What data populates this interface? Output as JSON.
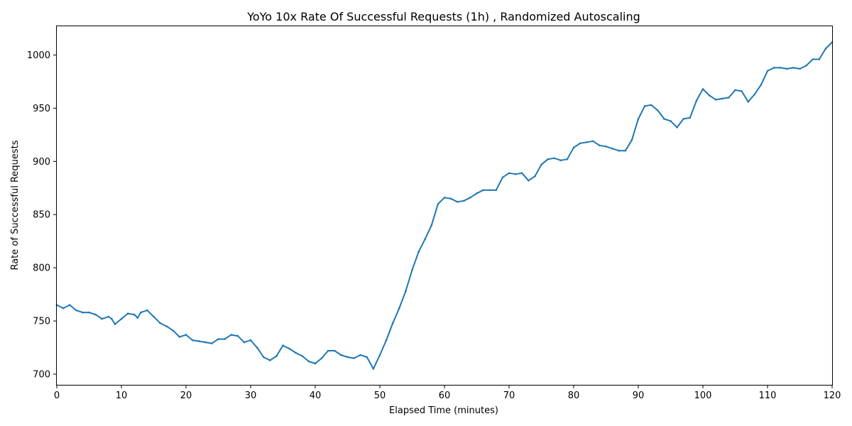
{
  "chart_data": {
    "type": "line",
    "title": "YoYo 10x Rate Of Successful Requests (1h) , Randomized Autoscaling",
    "xlabel": "Elapsed Time (minutes)",
    "ylabel": "Rate of Successful Requests",
    "xlim": [
      0,
      120
    ],
    "ylim": [
      690,
      1027
    ],
    "xticks": [
      0,
      10,
      20,
      30,
      40,
      50,
      60,
      70,
      80,
      90,
      100,
      110,
      120
    ],
    "yticks": [
      700,
      750,
      800,
      850,
      900,
      950,
      1000
    ],
    "grid": false,
    "legend": "none",
    "series": [
      {
        "color": "#1f77b4",
        "points": [
          [
            0,
            765
          ],
          [
            1,
            762
          ],
          [
            2,
            765
          ],
          [
            3,
            760
          ],
          [
            4,
            758
          ],
          [
            5,
            758
          ],
          [
            6,
            756
          ],
          [
            7,
            752
          ],
          [
            8,
            754
          ],
          [
            8.5,
            752
          ],
          [
            9,
            747
          ],
          [
            10,
            752
          ],
          [
            11,
            757
          ],
          [
            12,
            756
          ],
          [
            12.5,
            753
          ],
          [
            13,
            758
          ],
          [
            14,
            760
          ],
          [
            15,
            754
          ],
          [
            16,
            748
          ],
          [
            17,
            745
          ],
          [
            18,
            741
          ],
          [
            19,
            735
          ],
          [
            20,
            737
          ],
          [
            21,
            732
          ],
          [
            22,
            731
          ],
          [
            23,
            730
          ],
          [
            24,
            729
          ],
          [
            25,
            733
          ],
          [
            26,
            733
          ],
          [
            27,
            737
          ],
          [
            28,
            736
          ],
          [
            29,
            730
          ],
          [
            30,
            732
          ],
          [
            31,
            725
          ],
          [
            32,
            716
          ],
          [
            33,
            713
          ],
          [
            34,
            717
          ],
          [
            35,
            727
          ],
          [
            36,
            724
          ],
          [
            37,
            720
          ],
          [
            38,
            717
          ],
          [
            39,
            712
          ],
          [
            40,
            710
          ],
          [
            41,
            715
          ],
          [
            42,
            722
          ],
          [
            43,
            722
          ],
          [
            44,
            718
          ],
          [
            45,
            716
          ],
          [
            46,
            715
          ],
          [
            47,
            718
          ],
          [
            48,
            716
          ],
          [
            49,
            705
          ],
          [
            50,
            718
          ],
          [
            51,
            732
          ],
          [
            52,
            748
          ],
          [
            53,
            762
          ],
          [
            54,
            778
          ],
          [
            55,
            798
          ],
          [
            56,
            815
          ],
          [
            57,
            827
          ],
          [
            58,
            840
          ],
          [
            59,
            860
          ],
          [
            60,
            866
          ],
          [
            61,
            865
          ],
          [
            62,
            862
          ],
          [
            63,
            863
          ],
          [
            64,
            866
          ],
          [
            65,
            870
          ],
          [
            66,
            873
          ],
          [
            67,
            873
          ],
          [
            68,
            873
          ],
          [
            69,
            885
          ],
          [
            70,
            889
          ],
          [
            71,
            888
          ],
          [
            72,
            889
          ],
          [
            73,
            882
          ],
          [
            74,
            886
          ],
          [
            75,
            897
          ],
          [
            76,
            902
          ],
          [
            77,
            903
          ],
          [
            78,
            901
          ],
          [
            79,
            902
          ],
          [
            80,
            913
          ],
          [
            81,
            917
          ],
          [
            82,
            918
          ],
          [
            83,
            919
          ],
          [
            84,
            915
          ],
          [
            85,
            914
          ],
          [
            86,
            912
          ],
          [
            87,
            910
          ],
          [
            88,
            910
          ],
          [
            89,
            920
          ],
          [
            90,
            940
          ],
          [
            91,
            952
          ],
          [
            92,
            953
          ],
          [
            93,
            948
          ],
          [
            94,
            940
          ],
          [
            95,
            938
          ],
          [
            96,
            932
          ],
          [
            97,
            940
          ],
          [
            98,
            941
          ],
          [
            99,
            957
          ],
          [
            100,
            968
          ],
          [
            101,
            962
          ],
          [
            102,
            958
          ],
          [
            103,
            959
          ],
          [
            104,
            960
          ],
          [
            105,
            967
          ],
          [
            106,
            966
          ],
          [
            107,
            956
          ],
          [
            108,
            963
          ],
          [
            109,
            972
          ],
          [
            110,
            985
          ],
          [
            111,
            988
          ],
          [
            112,
            988
          ],
          [
            113,
            987
          ],
          [
            114,
            988
          ],
          [
            115,
            987
          ],
          [
            116,
            990
          ],
          [
            117,
            996
          ],
          [
            118,
            996
          ],
          [
            119,
            1006
          ],
          [
            120,
            1012
          ]
        ]
      }
    ]
  }
}
